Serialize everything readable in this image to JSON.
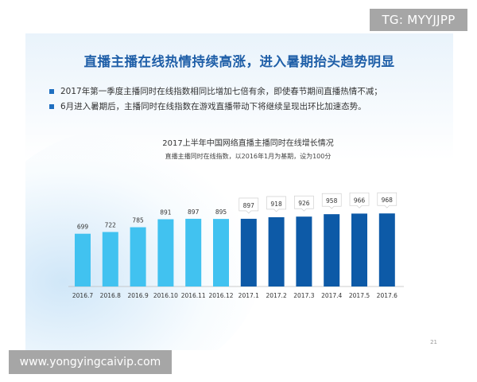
{
  "tag": "TG: MYYJJPP",
  "watermark": "www.yongyingcaivip.com",
  "headline": "直播主播在线热情持续高涨，进入暑期抬头趋势明显",
  "bullets": [
    "2017年第一季度主播同时在线指数相同比增加七倍有余，即使春节期间直播热情不减；",
    "6月进入暑期后，主播同时在线指数在游戏直播带动下将继续呈现出环比加速态势。"
  ],
  "page_number": "21",
  "colors": {
    "headline": "#1f5fa8",
    "bullet": "#1f6fc0",
    "bar_light": "#41c2f0",
    "bar_dark": "#0d5aa7"
  },
  "chart_data": {
    "type": "bar",
    "title": "2017上半年中国网络直播主播同时在线增长情况",
    "subtitle": "直播主播同时在线指数，以2016年1月为基期，设为100分",
    "categories": [
      "2016.7",
      "2016.8",
      "2016.9",
      "2016.10",
      "2016.11",
      "2016.12",
      "2017.1",
      "2017.2",
      "2017.3",
      "2017.4",
      "2017.5",
      "2017.6"
    ],
    "series": [
      {
        "values": [
          699,
          722,
          785,
          891,
          897,
          895,
          897,
          918,
          926,
          958,
          966,
          968
        ]
      }
    ],
    "labels": [
      "699",
      "722",
      "785",
      "891",
      "897",
      "895",
      "897",
      "918",
      "926",
      "958",
      "966",
      "968"
    ],
    "ylim": [
      0,
      1000
    ],
    "grid": false,
    "legend": "none"
  }
}
